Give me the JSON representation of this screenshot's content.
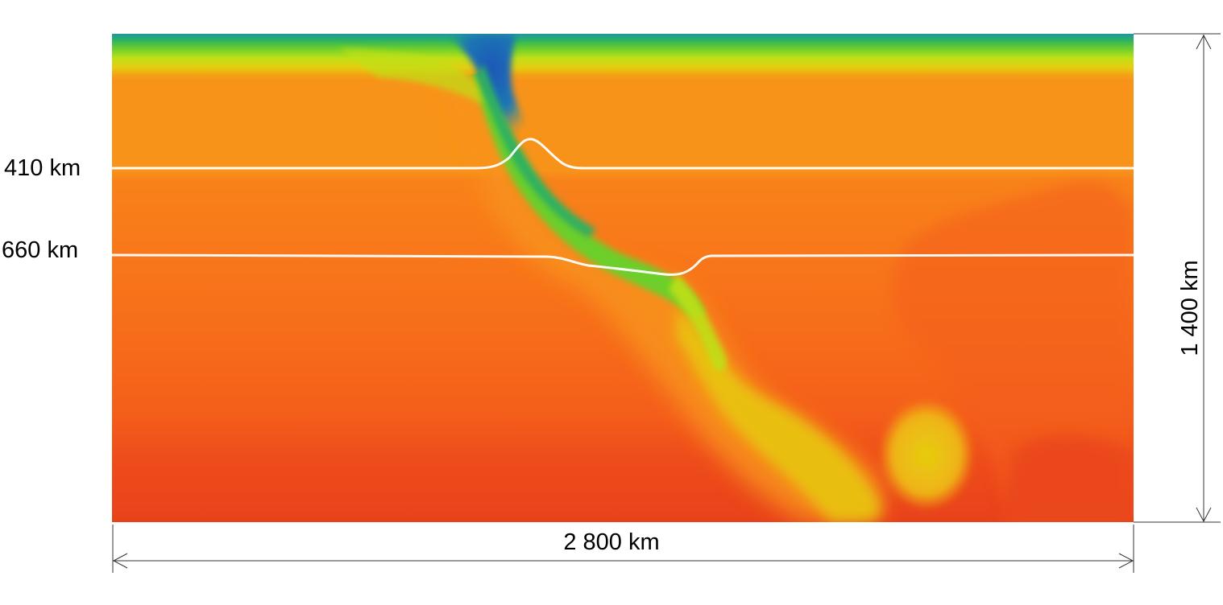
{
  "figure": {
    "depth_labels": {
      "upper": "410 km",
      "lower": "660 km"
    },
    "width_label": "2 800 km",
    "depth_label": "1 400 km"
  },
  "colors": {
    "deep_red": "#e8421b",
    "orange_red": "#f45e1b",
    "orange": "#f8741a",
    "light_orange": "#f8931a",
    "amber": "#f2a314",
    "yellow": "#e6cd10",
    "yellow_green": "#bfe018",
    "green": "#6ccf2c",
    "teal_green": "#2eb160",
    "teal": "#1c98a4",
    "blue": "#1f57b8",
    "discontinuity_line": "#ffffff"
  }
}
